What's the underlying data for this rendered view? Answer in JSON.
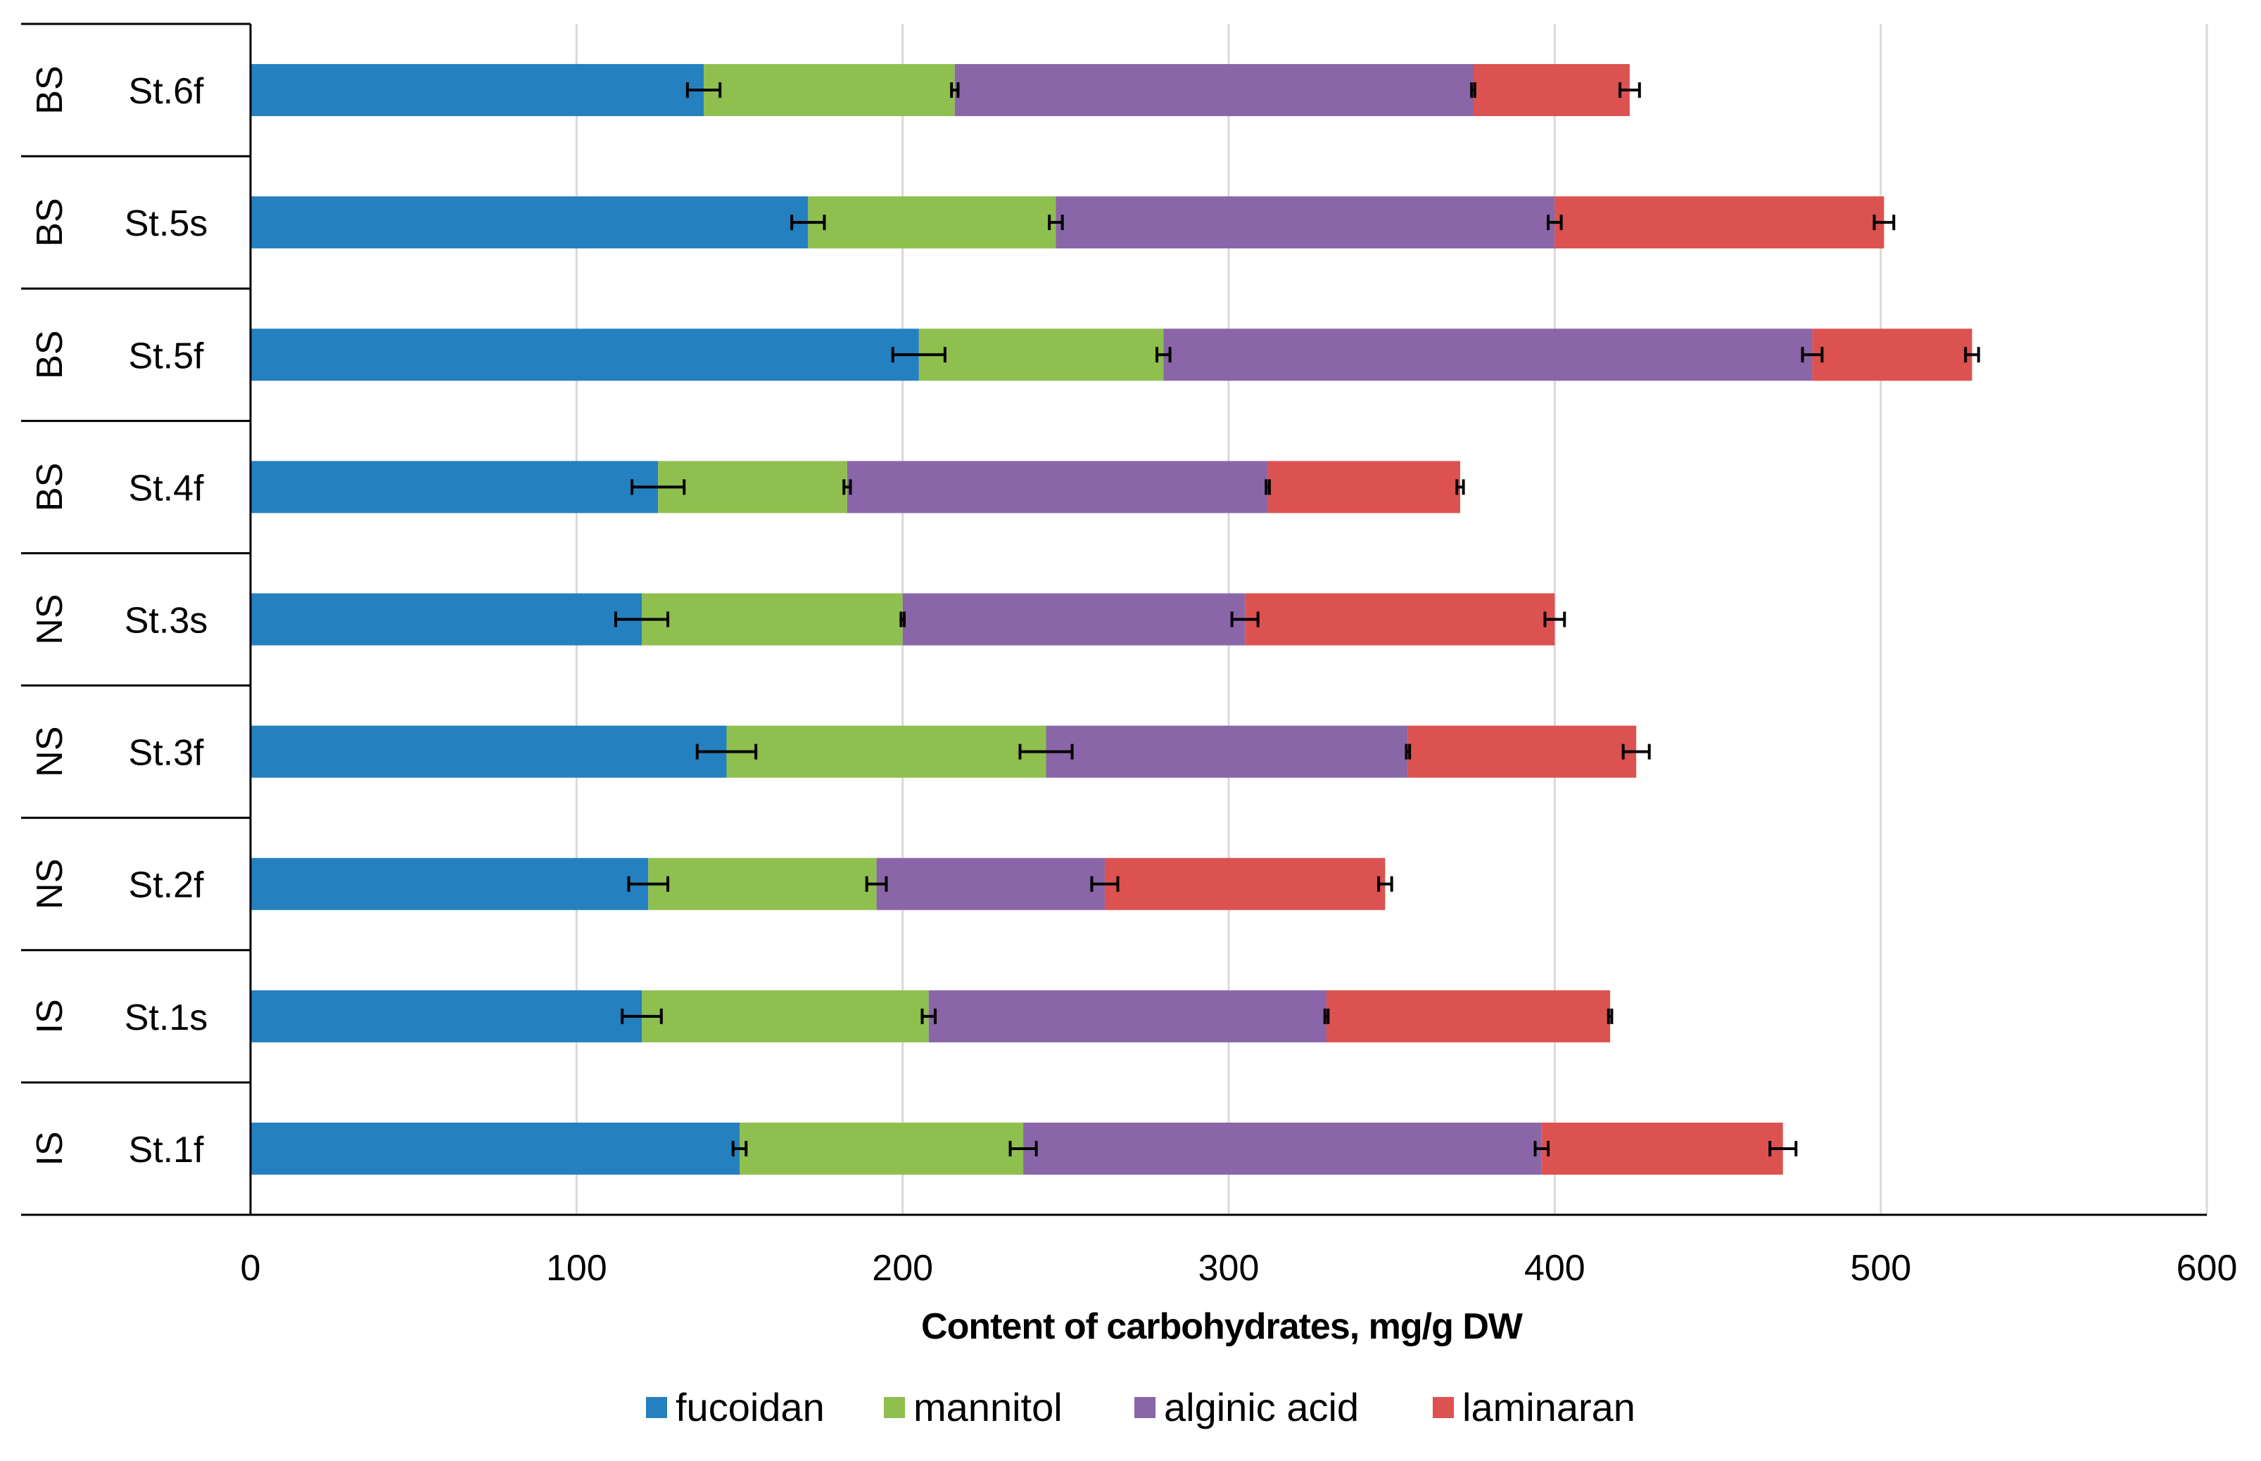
{
  "chart_data": {
    "type": "bar",
    "orientation": "horizontal",
    "stacked": true,
    "xlabel": "Content of carbohydrates, mg/g DW",
    "xlim": [
      0,
      600
    ],
    "xticks": [
      0,
      100,
      200,
      300,
      400,
      500,
      600
    ],
    "grid": true,
    "legend_position": "bottom",
    "categories": [
      {
        "group": "BS",
        "sample": "St.6f"
      },
      {
        "group": "BS",
        "sample": "St.5s"
      },
      {
        "group": "BS",
        "sample": "St.5f"
      },
      {
        "group": "BS",
        "sample": "St.4f"
      },
      {
        "group": "NS",
        "sample": "St.3s"
      },
      {
        "group": "NS",
        "sample": "St.3f"
      },
      {
        "group": "NS",
        "sample": "St.2f"
      },
      {
        "group": "IS",
        "sample": "St.1s"
      },
      {
        "group": "IS",
        "sample": "St.1f"
      }
    ],
    "series": [
      {
        "name": "fucoidan",
        "color": "#2580c0",
        "values": [
          139,
          171,
          205,
          125,
          120,
          146,
          122,
          120,
          150
        ],
        "errors": [
          5,
          5,
          8,
          8,
          8,
          9,
          6,
          6,
          2
        ]
      },
      {
        "name": "mannitol",
        "color": "#8fbf4f",
        "values": [
          77,
          76,
          75,
          58,
          80,
          98,
          70,
          88,
          87
        ],
        "errors": [
          1,
          2,
          2,
          1,
          0.5,
          8,
          3,
          2,
          4
        ]
      },
      {
        "name": "alginic acid",
        "color": "#8a66a8",
        "values": [
          159,
          153,
          199,
          129,
          105,
          111,
          70,
          122,
          159
        ],
        "errors": [
          0.5,
          2,
          3,
          0.5,
          4,
          0.5,
          4,
          0.5,
          2
        ]
      },
      {
        "name": "laminaran",
        "color": "#dc5250",
        "values": [
          48,
          101,
          49,
          59,
          95,
          70,
          86,
          87,
          74
        ],
        "errors": [
          3,
          3,
          2,
          1,
          3,
          4,
          2,
          0.5,
          4
        ]
      }
    ]
  }
}
